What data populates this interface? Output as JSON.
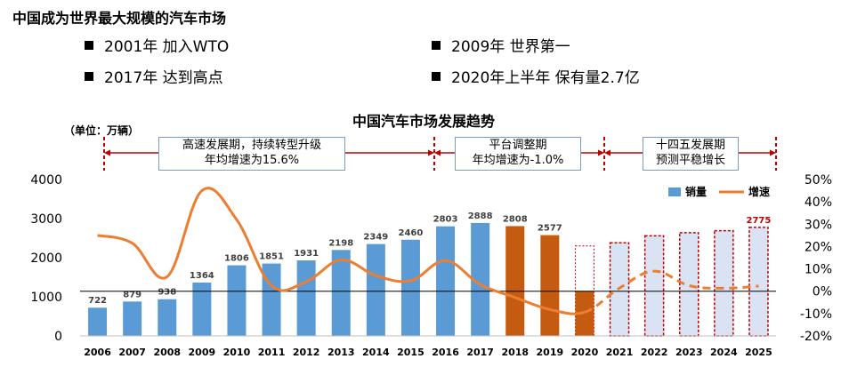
{
  "page_title": "中国成为世界最大规模的汽车市场",
  "bullets": [
    "2001年 加入WTO",
    "2009年 世界第一",
    "2017年 达到高点",
    "2020年上半年  保有量2.7亿"
  ],
  "chart_data": {
    "type": "bar",
    "title": "中国汽车市场发展趋势",
    "unit_label": "（单位：万辆）",
    "categories": [
      "2006",
      "2007",
      "2008",
      "2009",
      "2010",
      "2011",
      "2012",
      "2013",
      "2014",
      "2015",
      "2016",
      "2017",
      "2018",
      "2019",
      "2020",
      "2021",
      "2022",
      "2023",
      "2024",
      "2025"
    ],
    "series": [
      {
        "name": "销量",
        "type": "bar",
        "values": [
          722,
          879,
          938,
          1364,
          1806,
          1851,
          1931,
          2198,
          2349,
          2460,
          2803,
          2888,
          2808,
          2577,
          2300,
          2380,
          2560,
          2640,
          2690,
          2775
        ],
        "data_labels": [
          "722",
          "879",
          "938",
          "1364",
          "1806",
          "1851",
          "1931",
          "2198",
          "2349",
          "2460",
          "2803",
          "2888",
          "2808",
          "2577",
          "",
          "",
          "",
          "",
          "",
          "2775"
        ],
        "colors": {
          "history": "#5b9bd5",
          "adjust": "#c55a11",
          "forecast_fill": "#dae3f3",
          "forecast_border": "#c00000",
          "highlight_label": "#c00000"
        }
      },
      {
        "name": "增速",
        "type": "line",
        "axis": "right",
        "values": [
          25,
          21.5,
          6.5,
          45,
          32,
          2.5,
          4.3,
          14,
          7,
          4.7,
          13.7,
          3,
          -2.8,
          -8.2,
          -9.4,
          1.4,
          9,
          2.5,
          1.3,
          2.3
        ],
        "color": "#ed7d31"
      }
    ],
    "adjust_2020_solid_value": 1150,
    "left_axis": {
      "min": 0,
      "max": 4000,
      "ticks": [
        "0",
        "1000",
        "2000",
        "3000",
        "4000"
      ]
    },
    "right_axis": {
      "min": -20,
      "max": 50,
      "ticks": [
        "-20%",
        "-10%",
        "0%",
        "10%",
        "20%",
        "30%",
        "40%",
        "50%"
      ]
    },
    "phases": [
      {
        "line1": "高速发展期，持续转型升级",
        "line2": "年均增速为15.6%"
      },
      {
        "line1": "平台调整期",
        "line2": "年均增速为-1.0%"
      },
      {
        "line1": "十四五发展期",
        "line2": "预测平稳增长"
      }
    ],
    "legend_position": "top-right",
    "gridlines": false
  }
}
